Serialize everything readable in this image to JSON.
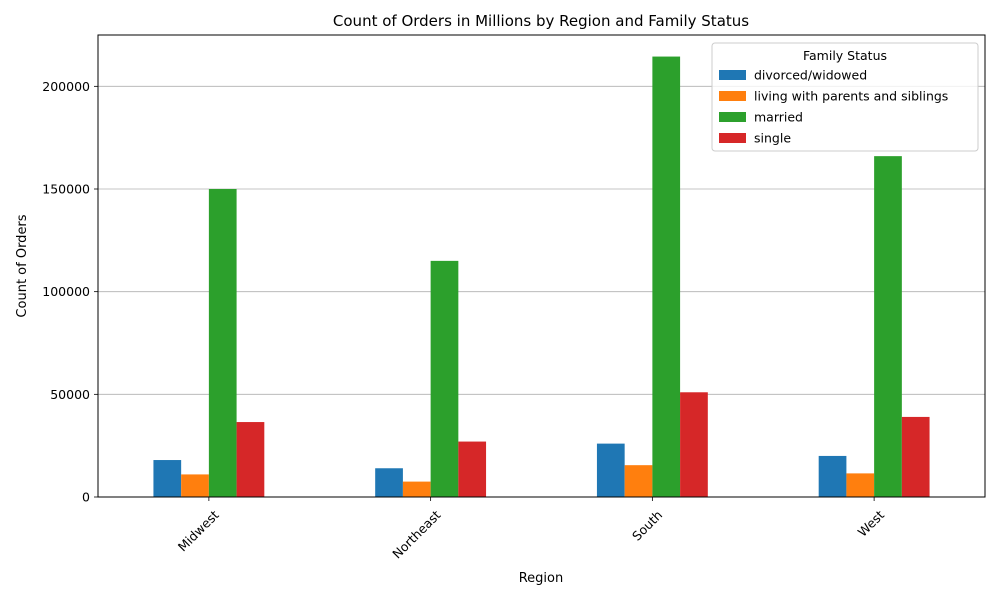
{
  "chart_data": {
    "type": "bar",
    "title": "Count of Orders in Millions by Region and Family Status",
    "xlabel": "Region",
    "ylabel": "Count of Orders",
    "categories": [
      "Midwest",
      "Northeast",
      "South",
      "West"
    ],
    "series": [
      {
        "name": "divorced/widowed",
        "color": "#1f77b4",
        "values": [
          18000,
          14000,
          26000,
          20000
        ]
      },
      {
        "name": "living with parents and siblings",
        "color": "#ff7f0e",
        "values": [
          11000,
          7500,
          15500,
          11500
        ]
      },
      {
        "name": "married",
        "color": "#2ca02c",
        "values": [
          150000,
          115000,
          214500,
          166000
        ]
      },
      {
        "name": "single",
        "color": "#d62728",
        "values": [
          36500,
          27000,
          51000,
          39000
        ]
      }
    ],
    "ylim": [
      0,
      225000
    ],
    "yticks": [
      0,
      50000,
      100000,
      150000,
      200000
    ],
    "ytick_labels": [
      "0",
      "50000",
      "100000",
      "150000",
      "200000"
    ],
    "grid": "y",
    "legend": {
      "title": "Family Status",
      "position": "top-right"
    }
  }
}
